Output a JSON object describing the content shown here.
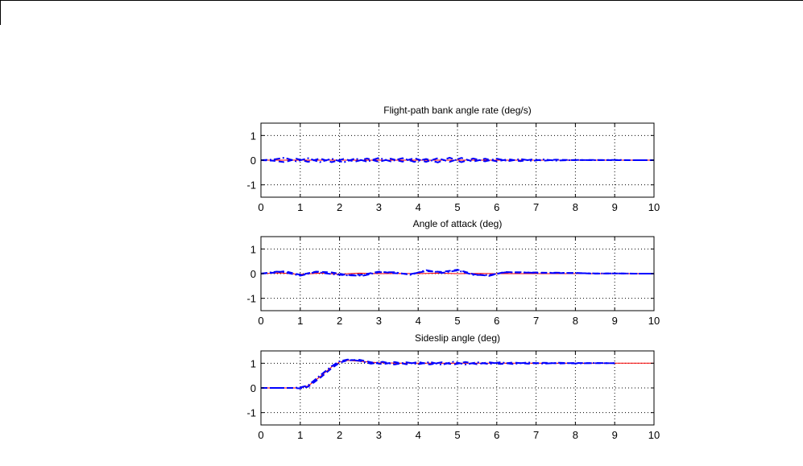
{
  "chart_data": [
    {
      "type": "line",
      "title": "Flight-path bank angle rate (deg/s)",
      "xlabel": "",
      "ylabel": "",
      "xlim": [
        0,
        10
      ],
      "ylim": [
        -1.5,
        1.5
      ],
      "xticks": [
        0,
        1,
        2,
        3,
        4,
        5,
        6,
        7,
        8,
        9,
        10
      ],
      "yticks": [
        -1,
        0,
        1
      ],
      "grid": true,
      "series": [
        {
          "color": "#ff0000",
          "style": "solid",
          "x": [
            0,
            10
          ],
          "y": [
            0,
            0
          ]
        },
        {
          "color": "#0000ff",
          "style": "dashdot",
          "x": [
            0,
            0.3,
            0.6,
            0.9,
            1.2,
            1.5,
            1.8,
            2.1,
            2.4,
            2.7,
            3.0,
            3.3,
            3.6,
            3.9,
            4.2,
            4.5,
            4.8,
            5.1,
            5.4,
            5.7,
            6.0,
            6.3,
            6.6,
            6.9,
            7.2,
            7.5,
            8.0,
            8.5,
            9.0,
            9.5,
            10.0
          ],
          "y": [
            0,
            0.02,
            0.1,
            -0.05,
            0.08,
            -0.08,
            0.06,
            -0.09,
            0.07,
            -0.06,
            0.09,
            -0.05,
            0.08,
            -0.07,
            0.05,
            -0.09,
            0.1,
            -0.08,
            0.07,
            -0.05,
            0.06,
            -0.04,
            0.05,
            -0.03,
            0.03,
            -0.02,
            0.01,
            0,
            0.01,
            0,
            0
          ]
        },
        {
          "color": "#0000ff",
          "style": "dashed",
          "x": [
            0,
            0.3,
            0.6,
            0.9,
            1.2,
            1.5,
            1.8,
            2.1,
            2.4,
            2.7,
            3.0,
            3.3,
            3.6,
            3.9,
            4.2,
            4.5,
            4.8,
            5.1,
            5.4,
            5.7,
            6.0,
            6.3,
            6.6,
            6.9,
            7.2,
            7.5,
            8.0,
            8.5,
            9.0,
            9.5,
            10.0
          ],
          "y": [
            0,
            -0.02,
            -0.08,
            0.06,
            -0.07,
            0.07,
            -0.08,
            0.05,
            -0.06,
            0.07,
            -0.07,
            0.06,
            -0.06,
            0.08,
            -0.07,
            0.08,
            -0.07,
            0.09,
            -0.06,
            0.06,
            -0.05,
            0.04,
            -0.04,
            0.03,
            -0.02,
            0.02,
            0,
            0.01,
            0,
            0,
            0
          ]
        }
      ]
    },
    {
      "type": "line",
      "title": "Angle of attack (deg)",
      "xlabel": "",
      "ylabel": "",
      "xlim": [
        0,
        10
      ],
      "ylim": [
        -1.5,
        1.5
      ],
      "xticks": [
        0,
        1,
        2,
        3,
        4,
        5,
        6,
        7,
        8,
        9,
        10
      ],
      "yticks": [
        -1,
        0,
        1
      ],
      "grid": true,
      "series": [
        {
          "color": "#ff0000",
          "style": "solid",
          "x": [
            0,
            0.5,
            1.0,
            1.5,
            2.0,
            2.5,
            3.0,
            3.5,
            4.0,
            4.5,
            5.0,
            5.5,
            6.0,
            6.5,
            7.0,
            8.0,
            9.0,
            10.0
          ],
          "y": [
            0,
            0.03,
            -0.03,
            0.02,
            -0.02,
            0.02,
            0,
            0.01,
            0,
            0.02,
            0,
            0.01,
            0,
            0,
            0,
            0,
            0,
            0
          ]
        },
        {
          "color": "#0000ff",
          "style": "dashdot",
          "x": [
            0,
            0.4,
            0.6,
            1.0,
            1.4,
            1.8,
            2.2,
            2.6,
            3.0,
            3.4,
            3.8,
            4.2,
            4.6,
            5.0,
            5.4,
            5.8,
            6.2,
            6.6,
            7.0,
            7.5,
            8.0,
            8.5,
            9.0,
            9.5,
            10.0
          ],
          "y": [
            0,
            0.08,
            0.06,
            -0.08,
            0.07,
            -0.02,
            -0.07,
            -0.08,
            0.06,
            0.06,
            -0.05,
            0.14,
            0.03,
            0.13,
            -0.05,
            -0.06,
            0.05,
            0.06,
            0.03,
            0.04,
            0.02,
            0.01,
            0.01,
            0,
            0
          ]
        },
        {
          "color": "#0000ff",
          "style": "dashed",
          "x": [
            0,
            0.4,
            0.6,
            1.0,
            1.4,
            1.8,
            2.2,
            2.6,
            3.0,
            3.4,
            3.8,
            4.2,
            4.6,
            5.0,
            5.4,
            5.8,
            6.2,
            6.6,
            7.0,
            7.5,
            8.0,
            8.5,
            9.0,
            9.5,
            10.0
          ],
          "y": [
            0,
            0.05,
            0.1,
            -0.05,
            0.08,
            0.05,
            -0.06,
            -0.04,
            0.08,
            0.02,
            -0.02,
            0.1,
            0.07,
            0.16,
            -0.02,
            -0.09,
            0.07,
            0.04,
            0.05,
            0.02,
            0.03,
            0,
            0.01,
            0,
            0
          ]
        }
      ]
    },
    {
      "type": "line",
      "title": "Sideslip angle (deg)",
      "xlabel": "",
      "ylabel": "",
      "xlim": [
        0,
        10
      ],
      "ylim": [
        -1.5,
        1.5
      ],
      "xticks": [
        0,
        1,
        2,
        3,
        4,
        5,
        6,
        7,
        8,
        9,
        10
      ],
      "yticks": [
        -1,
        0,
        1
      ],
      "grid": true,
      "series": [
        {
          "color": "#ff0000",
          "style": "solid",
          "x": [
            0,
            1.0,
            1.2,
            1.5,
            1.8,
            2.0,
            2.2,
            2.5,
            3.0,
            3.5,
            4.0,
            5.0,
            6.0,
            7.0,
            8.0,
            9.0,
            10.0
          ],
          "y": [
            0,
            0,
            0.08,
            0.45,
            0.85,
            1.05,
            1.12,
            1.08,
            1.02,
            1.0,
            1.0,
            1.0,
            1.0,
            1.0,
            1.0,
            1.0,
            1.0
          ]
        },
        {
          "color": "#0000ff",
          "style": "dashdot",
          "x": [
            0,
            0.8,
            1.0,
            1.2,
            1.5,
            1.8,
            2.0,
            2.2,
            2.5,
            2.8,
            3.1,
            3.4,
            3.7,
            4.0,
            4.3,
            4.6,
            4.9,
            5.2,
            5.5,
            5.8,
            6.1,
            6.4,
            6.8,
            7.2,
            7.6,
            8.0,
            8.5,
            9.0
          ],
          "y": [
            0,
            0,
            0.02,
            0.1,
            0.5,
            0.88,
            1.08,
            1.15,
            1.1,
            0.98,
            1.06,
            0.95,
            1.04,
            0.96,
            1.05,
            0.94,
            1.06,
            0.95,
            1.04,
            0.97,
            1.04,
            0.97,
            1.03,
            0.98,
            1.02,
            0.99,
            1.01,
            1.0
          ]
        },
        {
          "color": "#0000ff",
          "style": "dashed",
          "x": [
            0,
            0.8,
            1.0,
            1.2,
            1.5,
            1.8,
            2.0,
            2.2,
            2.5,
            2.8,
            3.1,
            3.4,
            3.7,
            4.0,
            4.3,
            4.6,
            4.9,
            5.2,
            5.5,
            5.8,
            6.1,
            6.4,
            6.8,
            7.2,
            7.6,
            8.0,
            8.5,
            9.0
          ],
          "y": [
            0,
            0,
            -0.02,
            0.05,
            0.4,
            0.8,
            1.02,
            1.12,
            1.14,
            1.04,
            0.96,
            1.05,
            0.96,
            1.05,
            0.95,
            1.04,
            0.95,
            1.05,
            0.96,
            1.04,
            0.97,
            1.03,
            0.98,
            1.02,
            0.99,
            1.01,
            1.0,
            1.0
          ]
        }
      ]
    }
  ]
}
